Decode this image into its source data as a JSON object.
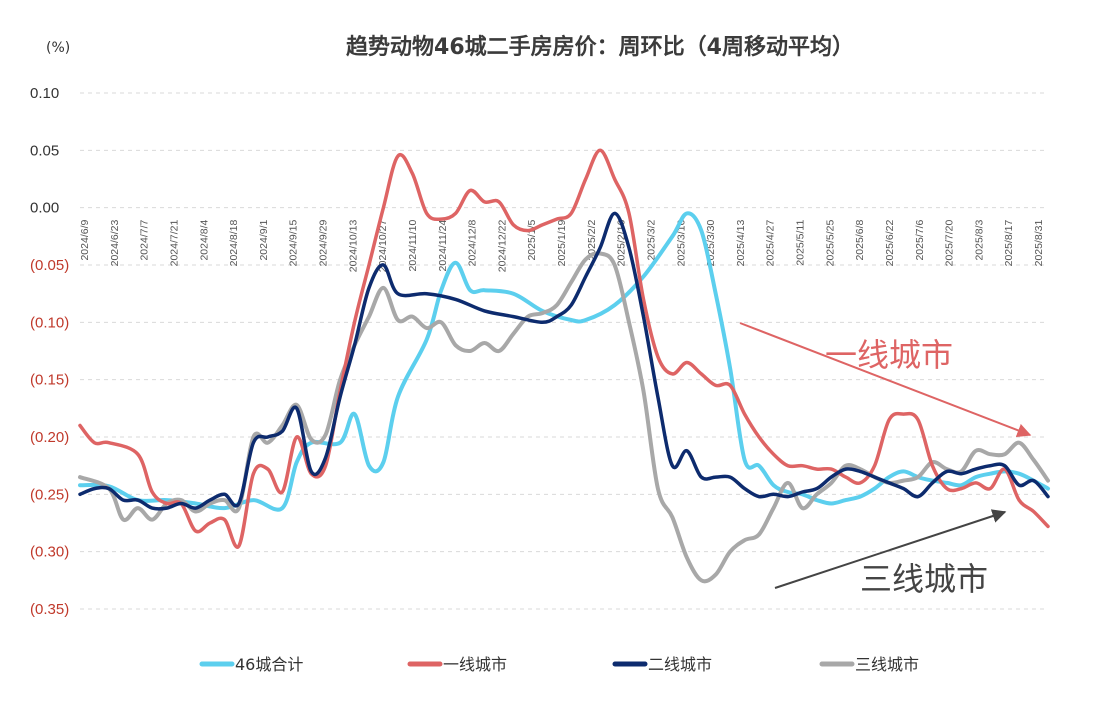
{
  "chart_data": {
    "type": "line",
    "title": "趋势动物46城二手房房价：周环比（4周移动平均）",
    "unit_label": "(%)",
    "ylim": [
      -0.35,
      0.1
    ],
    "y_ticks": [
      0.1,
      0.05,
      0.0,
      -0.05,
      -0.1,
      -0.15,
      -0.2,
      -0.25,
      -0.3,
      -0.35
    ],
    "y_tick_labels": [
      "0.10",
      "0.05",
      "0.00",
      "(0.05)",
      "(0.10)",
      "(0.15)",
      "(0.20)",
      "(0.25)",
      "(0.30)",
      "(0.35)"
    ],
    "x_tick_labels": [
      "2024/6/9",
      "2024/6/23",
      "2024/7/7",
      "2024/7/21",
      "2024/8/4",
      "2024/8/18",
      "2024/9/1",
      "2024/9/15",
      "2024/9/29",
      "2024/10/13",
      "2024/10/27",
      "2024/11/10",
      "2024/11/24",
      "2024/12/8",
      "2024/12/22",
      "2025/1/5",
      "2025/1/19",
      "2025/2/2",
      "2025/2/16",
      "2025/3/2",
      "2025/3/16",
      "2025/3/30",
      "2025/4/13",
      "2025/4/27",
      "2025/5/11",
      "2025/5/25",
      "2025/6/8",
      "2025/6/22",
      "2025/7/6",
      "2025/7/20",
      "2025/8/3",
      "2025/8/17",
      "2025/8/31"
    ],
    "x_range": [
      0,
      67
    ],
    "series": [
      {
        "name": "46城合计",
        "color": "#5ccfee",
        "points": [
          [
            0,
            -0.242
          ],
          [
            2,
            -0.243
          ],
          [
            4,
            -0.255
          ],
          [
            6,
            -0.255
          ],
          [
            8,
            -0.258
          ],
          [
            10,
            -0.262
          ],
          [
            12,
            -0.255
          ],
          [
            14,
            -0.262
          ],
          [
            15,
            -0.222
          ],
          [
            16,
            -0.205
          ],
          [
            18,
            -0.205
          ],
          [
            19,
            -0.18
          ],
          [
            20,
            -0.225
          ],
          [
            21,
            -0.222
          ],
          [
            22,
            -0.165
          ],
          [
            24,
            -0.115
          ],
          [
            25,
            -0.072
          ],
          [
            26,
            -0.048
          ],
          [
            27,
            -0.072
          ],
          [
            28,
            -0.072
          ],
          [
            30,
            -0.075
          ],
          [
            32,
            -0.09
          ],
          [
            34,
            -0.098
          ],
          [
            35,
            -0.098
          ],
          [
            37,
            -0.085
          ],
          [
            39,
            -0.06
          ],
          [
            41,
            -0.025
          ],
          [
            42,
            -0.005
          ],
          [
            43,
            -0.02
          ],
          [
            44,
            -0.075
          ],
          [
            45,
            -0.14
          ],
          [
            46,
            -0.22
          ],
          [
            47,
            -0.225
          ],
          [
            48,
            -0.242
          ],
          [
            49,
            -0.248
          ],
          [
            50,
            -0.25
          ],
          [
            51,
            -0.255
          ],
          [
            52,
            -0.258
          ],
          [
            53,
            -0.255
          ],
          [
            54,
            -0.252
          ],
          [
            55,
            -0.245
          ],
          [
            56,
            -0.235
          ],
          [
            57,
            -0.23
          ],
          [
            58,
            -0.235
          ],
          [
            59,
            -0.238
          ],
          [
            60,
            -0.24
          ],
          [
            61,
            -0.242
          ],
          [
            62,
            -0.235
          ],
          [
            63,
            -0.232
          ],
          [
            64,
            -0.23
          ],
          [
            65,
            -0.232
          ],
          [
            66,
            -0.238
          ],
          [
            67,
            -0.245
          ]
        ]
      },
      {
        "name": "一线城市",
        "color": "#de6464",
        "points": [
          [
            0,
            -0.19
          ],
          [
            1,
            -0.205
          ],
          [
            2,
            -0.205
          ],
          [
            4,
            -0.215
          ],
          [
            5,
            -0.248
          ],
          [
            6,
            -0.258
          ],
          [
            7,
            -0.258
          ],
          [
            8,
            -0.282
          ],
          [
            9,
            -0.275
          ],
          [
            10,
            -0.272
          ],
          [
            11,
            -0.295
          ],
          [
            12,
            -0.232
          ],
          [
            13,
            -0.228
          ],
          [
            14,
            -0.248
          ],
          [
            15,
            -0.2
          ],
          [
            16,
            -0.232
          ],
          [
            17,
            -0.225
          ],
          [
            18,
            -0.16
          ],
          [
            19,
            -0.1
          ],
          [
            20,
            -0.05
          ],
          [
            21,
            0.0
          ],
          [
            22,
            0.045
          ],
          [
            23,
            0.03
          ],
          [
            24,
            -0.005
          ],
          [
            25,
            -0.01
          ],
          [
            26,
            -0.005
          ],
          [
            27,
            0.015
          ],
          [
            28,
            0.005
          ],
          [
            29,
            0.005
          ],
          [
            30,
            -0.015
          ],
          [
            31,
            -0.02
          ],
          [
            32,
            -0.015
          ],
          [
            33,
            -0.01
          ],
          [
            34,
            -0.005
          ],
          [
            35,
            0.025
          ],
          [
            36,
            0.05
          ],
          [
            37,
            0.025
          ],
          [
            38,
            -0.005
          ],
          [
            39,
            -0.08
          ],
          [
            40,
            -0.13
          ],
          [
            41,
            -0.145
          ],
          [
            42,
            -0.135
          ],
          [
            43,
            -0.145
          ],
          [
            44,
            -0.155
          ],
          [
            45,
            -0.155
          ],
          [
            46,
            -0.18
          ],
          [
            47,
            -0.2
          ],
          [
            48,
            -0.215
          ],
          [
            49,
            -0.225
          ],
          [
            50,
            -0.225
          ],
          [
            51,
            -0.228
          ],
          [
            52,
            -0.228
          ],
          [
            53,
            -0.235
          ],
          [
            54,
            -0.24
          ],
          [
            55,
            -0.225
          ],
          [
            56,
            -0.185
          ],
          [
            57,
            -0.18
          ],
          [
            58,
            -0.185
          ],
          [
            59,
            -0.225
          ],
          [
            60,
            -0.245
          ],
          [
            61,
            -0.245
          ],
          [
            62,
            -0.24
          ],
          [
            63,
            -0.245
          ],
          [
            64,
            -0.228
          ],
          [
            65,
            -0.255
          ],
          [
            66,
            -0.265
          ],
          [
            67,
            -0.278
          ]
        ]
      },
      {
        "name": "二线城市",
        "color": "#0d2b6e",
        "points": [
          [
            0,
            -0.25
          ],
          [
            1,
            -0.245
          ],
          [
            2,
            -0.245
          ],
          [
            3,
            -0.255
          ],
          [
            4,
            -0.255
          ],
          [
            5,
            -0.262
          ],
          [
            6,
            -0.262
          ],
          [
            7,
            -0.258
          ],
          [
            8,
            -0.262
          ],
          [
            9,
            -0.255
          ],
          [
            10,
            -0.25
          ],
          [
            11,
            -0.258
          ],
          [
            12,
            -0.205
          ],
          [
            13,
            -0.2
          ],
          [
            14,
            -0.195
          ],
          [
            15,
            -0.175
          ],
          [
            16,
            -0.23
          ],
          [
            17,
            -0.218
          ],
          [
            18,
            -0.165
          ],
          [
            19,
            -0.12
          ],
          [
            20,
            -0.07
          ],
          [
            21,
            -0.05
          ],
          [
            22,
            -0.075
          ],
          [
            24,
            -0.075
          ],
          [
            26,
            -0.08
          ],
          [
            28,
            -0.09
          ],
          [
            30,
            -0.095
          ],
          [
            32,
            -0.1
          ],
          [
            33,
            -0.095
          ],
          [
            34,
            -0.085
          ],
          [
            35,
            -0.06
          ],
          [
            36,
            -0.035
          ],
          [
            37,
            -0.005
          ],
          [
            38,
            -0.035
          ],
          [
            39,
            -0.095
          ],
          [
            40,
            -0.165
          ],
          [
            41,
            -0.225
          ],
          [
            42,
            -0.212
          ],
          [
            43,
            -0.235
          ],
          [
            44,
            -0.235
          ],
          [
            45,
            -0.235
          ],
          [
            46,
            -0.245
          ],
          [
            47,
            -0.252
          ],
          [
            48,
            -0.25
          ],
          [
            49,
            -0.252
          ],
          [
            50,
            -0.248
          ],
          [
            51,
            -0.245
          ],
          [
            52,
            -0.235
          ],
          [
            53,
            -0.228
          ],
          [
            54,
            -0.23
          ],
          [
            55,
            -0.235
          ],
          [
            56,
            -0.24
          ],
          [
            57,
            -0.245
          ],
          [
            58,
            -0.252
          ],
          [
            59,
            -0.24
          ],
          [
            60,
            -0.23
          ],
          [
            61,
            -0.232
          ],
          [
            62,
            -0.228
          ],
          [
            63,
            -0.225
          ],
          [
            64,
            -0.225
          ],
          [
            65,
            -0.242
          ],
          [
            66,
            -0.238
          ],
          [
            67,
            -0.252
          ]
        ]
      },
      {
        "name": "三线城市",
        "color": "#a8a8a8",
        "points": [
          [
            0,
            -0.235
          ],
          [
            2,
            -0.245
          ],
          [
            3,
            -0.272
          ],
          [
            4,
            -0.262
          ],
          [
            5,
            -0.272
          ],
          [
            6,
            -0.258
          ],
          [
            7,
            -0.255
          ],
          [
            8,
            -0.265
          ],
          [
            9,
            -0.258
          ],
          [
            10,
            -0.255
          ],
          [
            11,
            -0.262
          ],
          [
            12,
            -0.2
          ],
          [
            13,
            -0.205
          ],
          [
            14,
            -0.19
          ],
          [
            15,
            -0.172
          ],
          [
            16,
            -0.202
          ],
          [
            17,
            -0.198
          ],
          [
            18,
            -0.15
          ],
          [
            19,
            -0.12
          ],
          [
            20,
            -0.095
          ],
          [
            21,
            -0.07
          ],
          [
            22,
            -0.098
          ],
          [
            23,
            -0.095
          ],
          [
            24,
            -0.105
          ],
          [
            25,
            -0.1
          ],
          [
            26,
            -0.12
          ],
          [
            27,
            -0.125
          ],
          [
            28,
            -0.118
          ],
          [
            29,
            -0.125
          ],
          [
            30,
            -0.11
          ],
          [
            31,
            -0.095
          ],
          [
            32,
            -0.092
          ],
          [
            33,
            -0.085
          ],
          [
            34,
            -0.065
          ],
          [
            35,
            -0.045
          ],
          [
            36,
            -0.04
          ],
          [
            37,
            -0.05
          ],
          [
            38,
            -0.1
          ],
          [
            39,
            -0.16
          ],
          [
            40,
            -0.245
          ],
          [
            41,
            -0.27
          ],
          [
            42,
            -0.305
          ],
          [
            43,
            -0.325
          ],
          [
            44,
            -0.32
          ],
          [
            45,
            -0.3
          ],
          [
            46,
            -0.29
          ],
          [
            47,
            -0.285
          ],
          [
            48,
            -0.262
          ],
          [
            49,
            -0.24
          ],
          [
            50,
            -0.262
          ],
          [
            51,
            -0.25
          ],
          [
            52,
            -0.24
          ],
          [
            53,
            -0.225
          ],
          [
            54,
            -0.228
          ],
          [
            55,
            -0.235
          ],
          [
            56,
            -0.24
          ],
          [
            57,
            -0.238
          ],
          [
            58,
            -0.235
          ],
          [
            59,
            -0.222
          ],
          [
            60,
            -0.228
          ],
          [
            61,
            -0.23
          ],
          [
            62,
            -0.212
          ],
          [
            63,
            -0.215
          ],
          [
            64,
            -0.215
          ],
          [
            65,
            -0.205
          ],
          [
            66,
            -0.22
          ],
          [
            67,
            -0.238
          ]
        ]
      }
    ],
    "annotations": [
      {
        "text": "一线城市",
        "color": "#de6464"
      },
      {
        "text": "三线城市",
        "color": "#444444"
      }
    ]
  }
}
